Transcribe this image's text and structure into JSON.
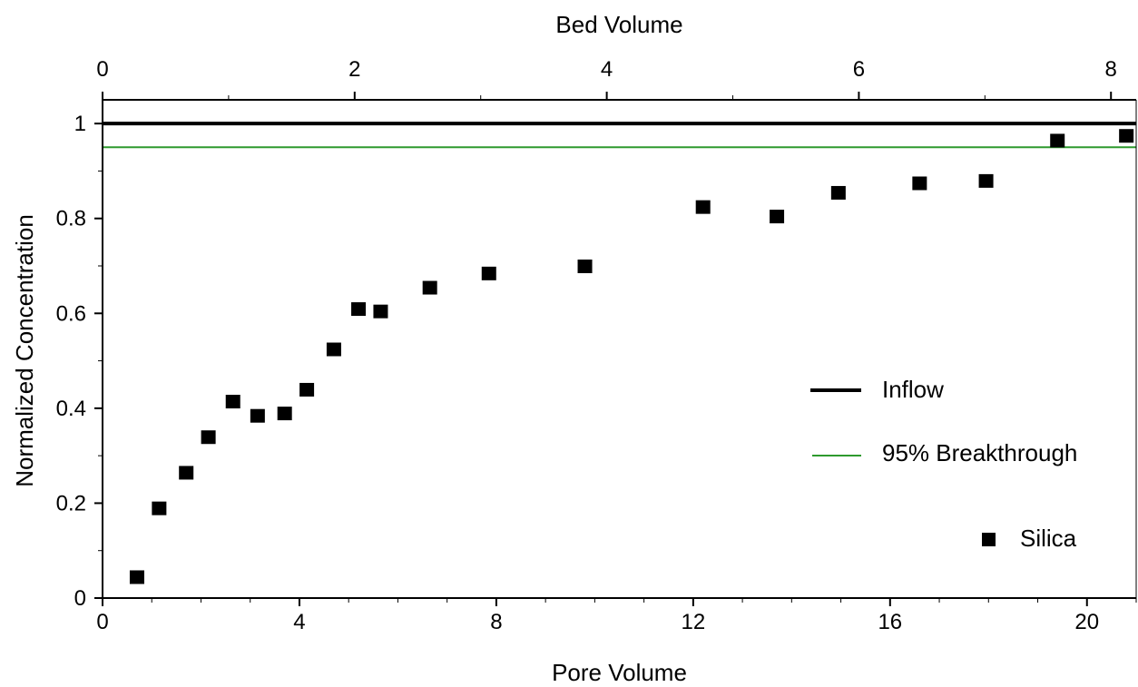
{
  "chart_data": {
    "type": "scatter",
    "title": "",
    "xlabel": "Pore Volume",
    "ylabel": "Normalized Concentration",
    "x2label": "Bed Volume",
    "xlim": [
      0,
      21
    ],
    "ylim": [
      0,
      1.05
    ],
    "x2lim": [
      0,
      8.2
    ],
    "xticks": [
      "0",
      "4",
      "8",
      "12",
      "16",
      "20"
    ],
    "yticks": [
      "0",
      "0.2",
      "0.4",
      "0.6",
      "0.8",
      "1"
    ],
    "x2ticks": [
      "0",
      "2",
      "4",
      "6",
      "8"
    ],
    "grid": false,
    "legend_position": "right",
    "reference_lines": [
      {
        "name": "Inflow",
        "y": 1.0,
        "color": "#000000"
      },
      {
        "name": "95% Breakthrough",
        "y": 0.95,
        "color": "#2e9a2e"
      }
    ],
    "series": [
      {
        "name": "Silica",
        "marker": "square",
        "color": "#000000",
        "x": [
          0.7,
          1.15,
          1.7,
          2.15,
          2.65,
          3.15,
          3.7,
          4.15,
          4.7,
          5.2,
          5.65,
          6.65,
          7.85,
          9.8,
          12.2,
          13.7,
          14.95,
          16.6,
          17.95,
          19.4,
          20.8
        ],
        "y": [
          0.045,
          0.19,
          0.265,
          0.34,
          0.415,
          0.385,
          0.39,
          0.44,
          0.525,
          0.61,
          0.605,
          0.655,
          0.685,
          0.7,
          0.825,
          0.805,
          0.855,
          0.875,
          0.88,
          0.965,
          0.975
        ]
      }
    ]
  }
}
